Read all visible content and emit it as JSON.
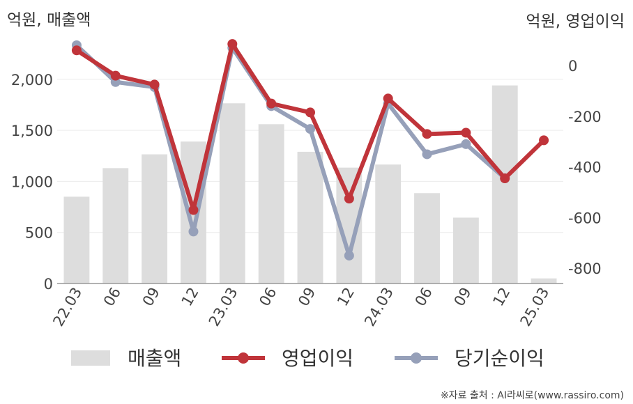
{
  "chart_data": {
    "type": "bar+line",
    "categories": [
      "22.03",
      "06",
      "09",
      "12",
      "23.03",
      "06",
      "09",
      "12",
      "24.03",
      "06",
      "09",
      "12",
      "25.03"
    ],
    "left_axis": {
      "label": "억원, 매출액",
      "ticks": [
        "0",
        "500",
        "1,000",
        "1,500",
        "2,000"
      ],
      "range": [
        0,
        2333
      ]
    },
    "right_axis": {
      "label": "억원, 영업이익",
      "ticks": [
        "0",
        "-200",
        "-400",
        "-600",
        "-800"
      ],
      "range": [
        -860,
        80
      ]
    },
    "series": [
      {
        "name": "매출액",
        "kind": "bar",
        "axis": "left",
        "color": "#dddddd",
        "values": [
          850,
          1130,
          1265,
          1390,
          1765,
          1560,
          1290,
          1135,
          1165,
          885,
          645,
          1940,
          50
        ]
      },
      {
        "name": "영업이익",
        "kind": "line",
        "axis": "right",
        "color": "#c0343a",
        "values": [
          60,
          -40,
          -75,
          -570,
          85,
          -150,
          -185,
          -525,
          -130,
          -270,
          -265,
          -445,
          -295
        ]
      },
      {
        "name": "당기순이익",
        "kind": "line",
        "axis": "right",
        "color": "#96a0b9",
        "values": [
          80,
          -65,
          -85,
          -655,
          70,
          -160,
          -250,
          -750,
          -150,
          -350,
          -310,
          -445,
          null
        ]
      }
    ],
    "grid": true,
    "legend": "bottom"
  },
  "source_note": "※자료 출처 : AI라씨로(www.rassiro.com)"
}
